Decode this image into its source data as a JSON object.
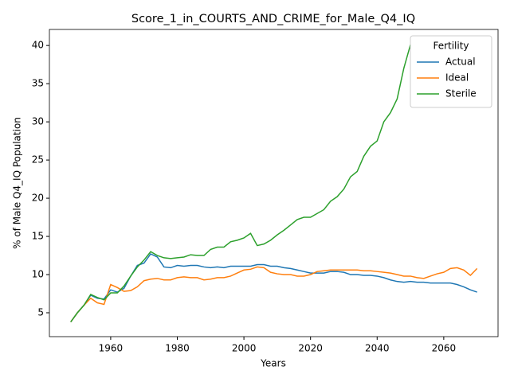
{
  "chart_data": {
    "type": "line",
    "title": "Score_1_in_COURTS_AND_CRIME_for_Male_Q4_IQ",
    "xlabel": "Years",
    "ylabel": "% of Male Q4_IQ Population",
    "legend_title": "Fertility",
    "legend_loc": "upper right",
    "x": [
      1948,
      1950,
      1952,
      1954,
      1956,
      1958,
      1960,
      1962,
      1964,
      1966,
      1968,
      1970,
      1972,
      1974,
      1976,
      1978,
      1980,
      1982,
      1984,
      1986,
      1988,
      1990,
      1992,
      1994,
      1996,
      1998,
      2000,
      2002,
      2004,
      2006,
      2008,
      2010,
      2012,
      2014,
      2016,
      2018,
      2020,
      2022,
      2024,
      2026,
      2028,
      2030,
      2032,
      2034,
      2036,
      2038,
      2040,
      2042,
      2044,
      2046,
      2048,
      2050,
      2052,
      2054,
      2056,
      2058,
      2060,
      2062,
      2064,
      2066,
      2068,
      2070
    ],
    "series": [
      {
        "name": "Actual",
        "color": "#1f77b4",
        "values": [
          3.8,
          5.0,
          6.0,
          7.3,
          6.9,
          6.8,
          8.0,
          7.7,
          8.2,
          9.8,
          11.2,
          11.5,
          12.7,
          12.3,
          11.0,
          10.9,
          11.2,
          11.1,
          11.2,
          11.2,
          11.0,
          10.9,
          11.0,
          10.9,
          11.1,
          11.1,
          11.1,
          11.1,
          11.3,
          11.3,
          11.1,
          11.1,
          10.9,
          10.8,
          10.6,
          10.4,
          10.2,
          10.2,
          10.2,
          10.4,
          10.4,
          10.3,
          10.0,
          10.0,
          9.9,
          9.9,
          9.8,
          9.6,
          9.3,
          9.1,
          9.0,
          9.1,
          9.0,
          9.0,
          8.9,
          8.9,
          8.9,
          8.9,
          8.7,
          8.4,
          8.0,
          7.7
        ]
      },
      {
        "name": "Ideal",
        "color": "#ff7f0e",
        "values": [
          3.8,
          5.0,
          6.0,
          6.9,
          6.3,
          6.1,
          8.7,
          8.3,
          7.8,
          7.9,
          8.4,
          9.2,
          9.4,
          9.5,
          9.3,
          9.3,
          9.6,
          9.7,
          9.6,
          9.6,
          9.3,
          9.4,
          9.6,
          9.6,
          9.8,
          10.2,
          10.6,
          10.7,
          11.0,
          10.9,
          10.3,
          10.1,
          10.0,
          10.0,
          9.8,
          9.8,
          10.0,
          10.4,
          10.5,
          10.6,
          10.6,
          10.6,
          10.6,
          10.6,
          10.5,
          10.5,
          10.4,
          10.3,
          10.2,
          10.0,
          9.8,
          9.8,
          9.6,
          9.5,
          9.8,
          10.1,
          10.3,
          10.8,
          10.9,
          10.6,
          9.9,
          10.8
        ]
      },
      {
        "name": "Sterile",
        "color": "#2ca02c",
        "values": [
          3.8,
          5.0,
          6.0,
          7.4,
          7.0,
          6.7,
          7.6,
          7.6,
          8.5,
          9.8,
          11.0,
          11.9,
          13.0,
          12.5,
          12.2,
          12.1,
          12.2,
          12.3,
          12.6,
          12.5,
          12.5,
          13.3,
          13.6,
          13.6,
          14.3,
          14.5,
          14.8,
          15.4,
          13.8,
          14.0,
          14.5,
          15.2,
          15.8,
          16.5,
          17.2,
          17.5,
          17.5,
          18.0,
          18.5,
          19.6,
          20.2,
          21.2,
          22.8,
          23.5,
          25.5,
          26.8,
          27.5,
          30.0,
          31.2,
          33.0,
          37.0,
          40.1,
          null,
          null,
          null,
          null,
          null,
          null,
          null,
          null,
          null,
          null
        ]
      }
    ],
    "xlim": [
      1941.6,
      2076.3
    ],
    "xticks": [
      1960,
      1980,
      2000,
      2020,
      2040,
      2060
    ],
    "ylim": [
      1.875,
      42.1
    ],
    "yticks": [
      5,
      10,
      15,
      20,
      25,
      30,
      35,
      40
    ],
    "grid": false
  }
}
